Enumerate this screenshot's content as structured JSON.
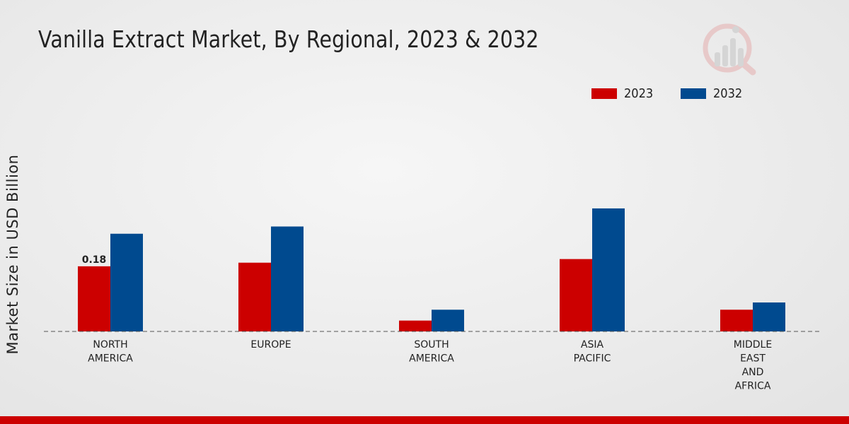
{
  "title": "Vanilla Extract Market, By Regional, 2023 & 2032",
  "colors": {
    "series_2023": "#cc0000",
    "series_2032": "#004a8f",
    "accent_bar": "#cc0000"
  },
  "logo_icon": "bar-chart-magnifier-logo-icon",
  "chart_data": {
    "type": "bar",
    "title": "Vanilla Extract Market, By Regional, 2023 & 2032",
    "xlabel": "",
    "ylabel": "Market Size in USD Billion",
    "ylim": [
      0,
      0.6
    ],
    "grid": false,
    "legend_position": "top-right",
    "categories": [
      [
        "NORTH",
        "AMERICA"
      ],
      [
        "EUROPE"
      ],
      [
        "SOUTH",
        "AMERICA"
      ],
      [
        "ASIA",
        "PACIFIC"
      ],
      [
        "MIDDLE",
        "EAST",
        "AND",
        "AFRICA"
      ]
    ],
    "series": [
      {
        "name": "2023",
        "color": "#cc0000",
        "values": [
          0.18,
          0.19,
          0.03,
          0.2,
          0.06
        ]
      },
      {
        "name": "2032",
        "color": "#004a8f",
        "values": [
          0.27,
          0.29,
          0.06,
          0.34,
          0.08
        ]
      }
    ],
    "annotations": [
      {
        "series": 0,
        "index": 0,
        "text": "0.18"
      }
    ]
  }
}
